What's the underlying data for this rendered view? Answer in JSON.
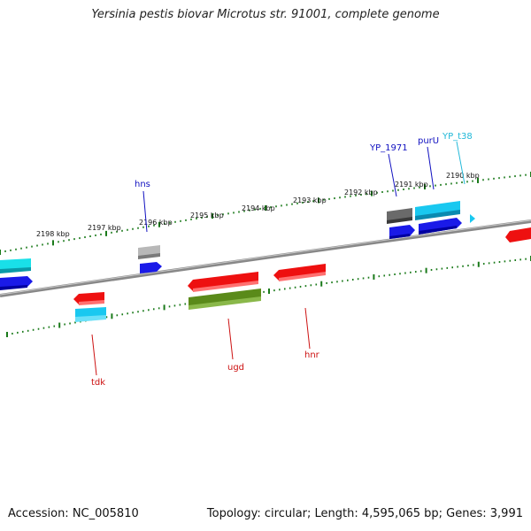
{
  "title": "Yersinia pestis biovar Microtus str. 91001, complete genome",
  "footer": {
    "accession": "Accession: NC_005810",
    "summary": "Topology: circular; Length: 4,595,065 bp; Genes: 3,991"
  },
  "colors": {
    "backbone": "#808080",
    "tick_track": "#1a7a1a",
    "label_blue": "#1010c0",
    "label_cyan": "#20b8d8",
    "label_red": "#cc1010"
  },
  "scale_labels": [
    "2198 kbp",
    "2197 kbp",
    "2196 kbp",
    "2195 kbp",
    "2194 kbp",
    "2193 kbp",
    "2192 kbp",
    "2191 kbp",
    "2190 kbp"
  ],
  "gene_labels": {
    "YP_1971": "YP_1971",
    "purU": "purU",
    "YP_t38": "YP_t38",
    "hns": "hns",
    "tdk": "tdk",
    "ugd": "ugd",
    "hnr": "hnr"
  }
}
